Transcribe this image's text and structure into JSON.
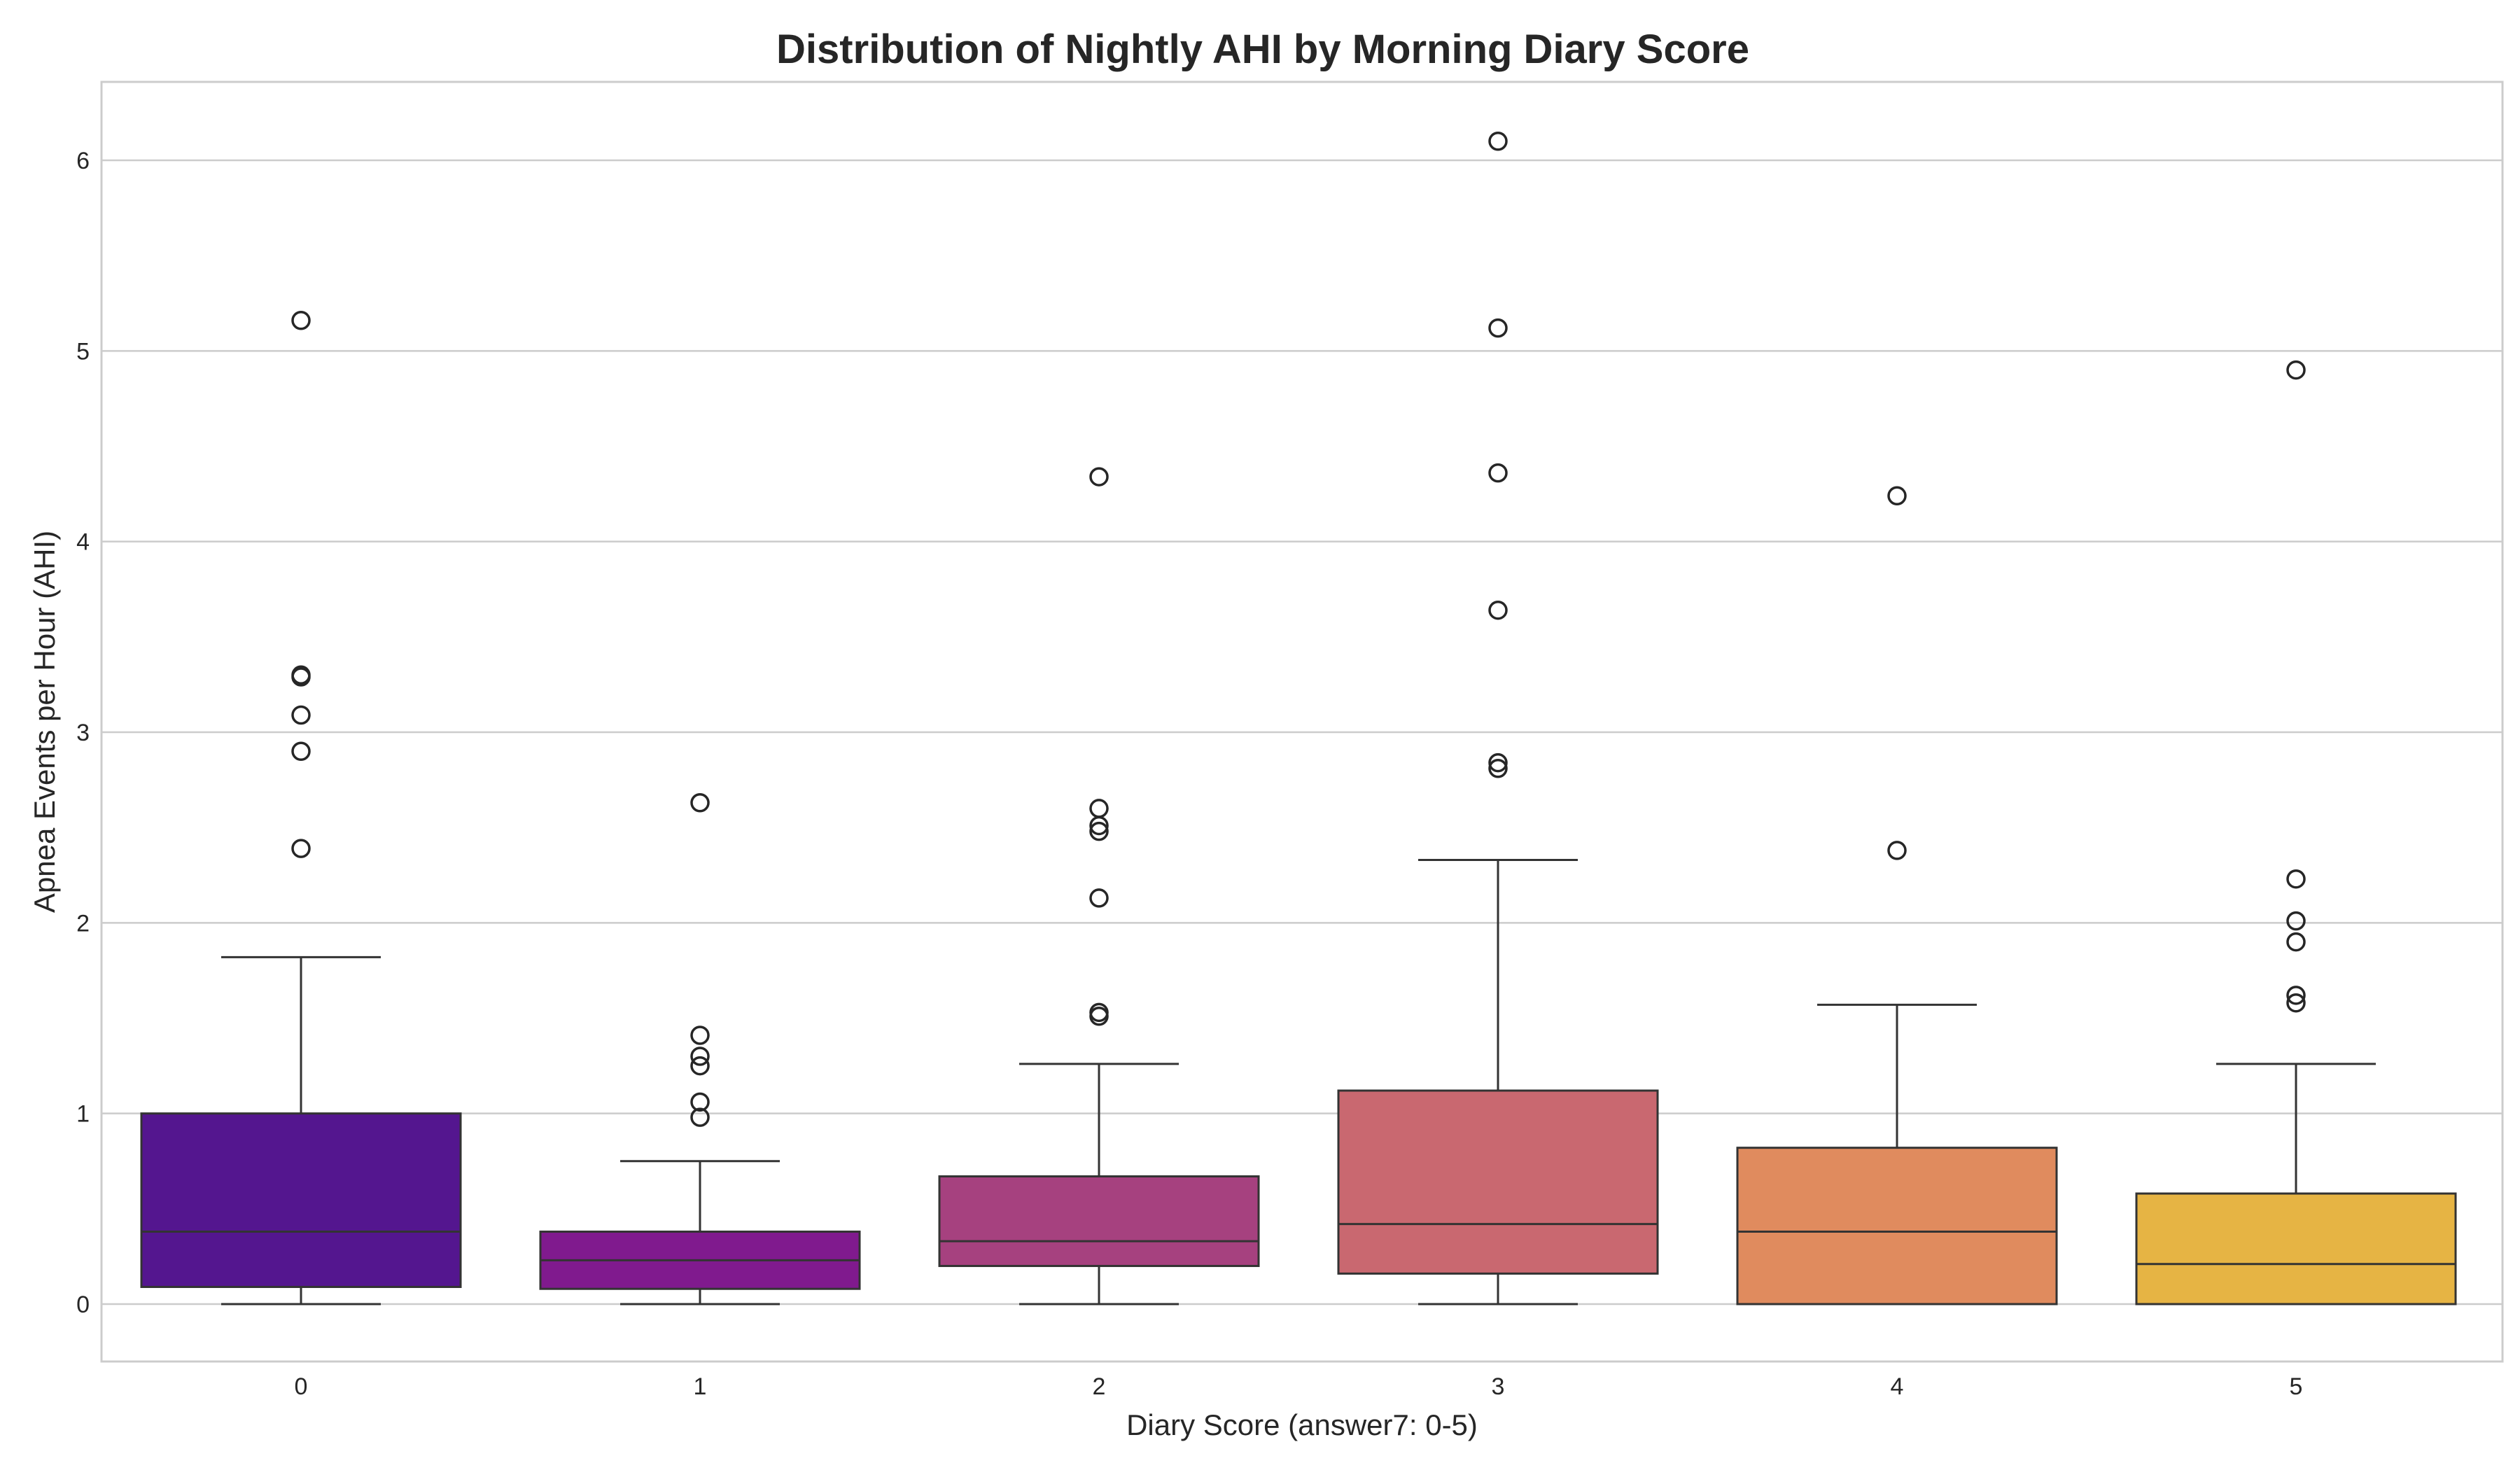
{
  "chart_data": {
    "type": "box",
    "title": "Distribution of Nightly AHI by Morning Diary Score",
    "xlabel": "Diary Score (answer7: 0-5)",
    "ylabel": "Apnea Events per Hour (AHI)",
    "ylim": [
      -0.3,
      6.4
    ],
    "yticks": [
      "0",
      "1",
      "2",
      "3",
      "4",
      "5",
      "6"
    ],
    "grid": "horizontal",
    "categories": [
      "0",
      "1",
      "2",
      "3",
      "4",
      "5"
    ],
    "boxes": [
      {
        "category": "0",
        "color": "#54168f",
        "whisker_low": 0.0,
        "q1": 0.09,
        "median": 0.38,
        "q3": 1.0,
        "whisker_high": 1.82,
        "outliers": [
          2.39,
          2.9,
          3.09,
          3.29,
          3.3,
          5.16
        ]
      },
      {
        "category": "1",
        "color": "#801a8e",
        "whisker_low": 0.0,
        "q1": 0.08,
        "median": 0.23,
        "q3": 0.38,
        "whisker_high": 0.75,
        "outliers": [
          0.98,
          1.06,
          1.25,
          1.3,
          1.41,
          2.63
        ]
      },
      {
        "category": "2",
        "color": "#a6417f",
        "whisker_low": 0.0,
        "q1": 0.2,
        "median": 0.33,
        "q3": 0.67,
        "whisker_high": 1.26,
        "outliers": [
          1.51,
          1.53,
          2.13,
          2.48,
          2.51,
          2.6,
          4.34
        ]
      },
      {
        "category": "3",
        "color": "#c96870",
        "whisker_low": 0.0,
        "q1": 0.16,
        "median": 0.42,
        "q3": 1.12,
        "whisker_high": 2.33,
        "outliers": [
          2.81,
          2.84,
          3.64,
          4.36,
          5.12,
          6.1
        ]
      },
      {
        "category": "4",
        "color": "#e08b5e",
        "whisker_low": 0.0,
        "q1": 0.0,
        "median": 0.38,
        "q3": 0.82,
        "whisker_high": 1.57,
        "outliers": [
          2.38,
          4.24
        ]
      },
      {
        "category": "5",
        "color": "#e6b444",
        "whisker_low": 0.0,
        "q1": 0.0,
        "median": 0.21,
        "q3": 0.58,
        "whisker_high": 1.26,
        "outliers": [
          1.58,
          1.62,
          1.9,
          2.01,
          2.23,
          4.9
        ]
      }
    ]
  }
}
